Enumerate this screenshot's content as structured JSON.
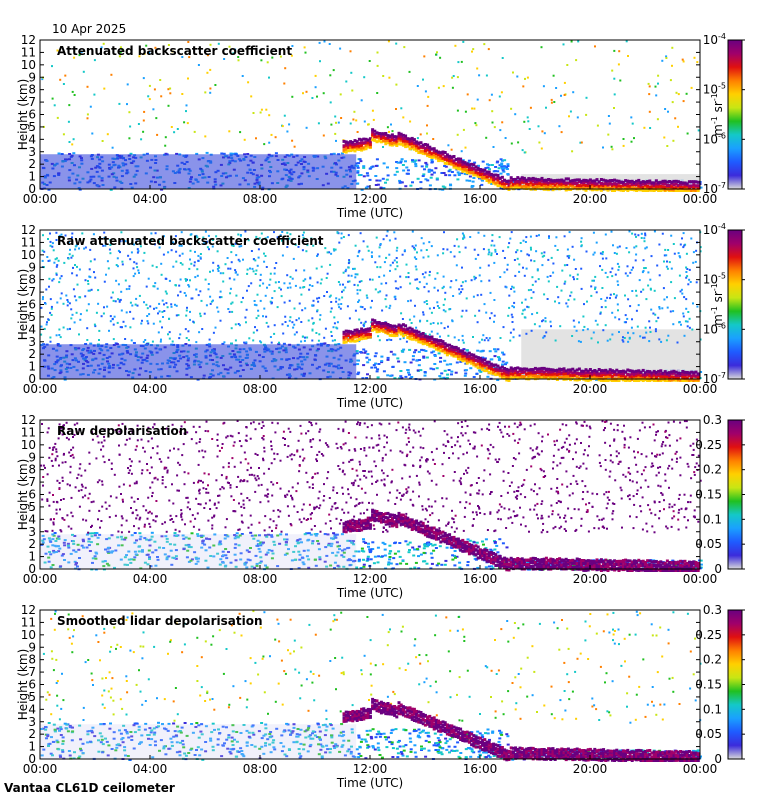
{
  "date_label": "10 Apr 2025",
  "footer_label": "Vantaa CL61D ceilometer",
  "chart_data": [
    {
      "type": "heatmap",
      "title": "Attenuated backscatter coefficient",
      "xlabel": "Time (UTC)",
      "ylabel": "Height (km)",
      "x_ticks": [
        "00:00",
        "04:00",
        "08:00",
        "12:00",
        "16:00",
        "20:00",
        "00:00"
      ],
      "y_ticks": [
        0,
        1,
        2,
        3,
        4,
        5,
        6,
        7,
        8,
        9,
        10,
        11,
        12
      ],
      "ylim": [
        0,
        12
      ],
      "colorbar": {
        "scale": "log",
        "ticks": [
          "10",
          "10",
          "10",
          "10"
        ],
        "exponents": [
          "-4",
          "-5",
          "-6",
          "-7"
        ],
        "unit": "m",
        "unit_exp": "-1",
        "unit2": "sr",
        "unit2_exp": "-1"
      }
    },
    {
      "type": "heatmap",
      "title": "Raw attenuated backscatter coefficient",
      "xlabel": "Time (UTC)",
      "ylabel": "Height (km)",
      "x_ticks": [
        "00:00",
        "04:00",
        "08:00",
        "12:00",
        "16:00",
        "20:00",
        "00:00"
      ],
      "y_ticks": [
        0,
        1,
        2,
        3,
        4,
        5,
        6,
        7,
        8,
        9,
        10,
        11,
        12
      ],
      "ylim": [
        0,
        12
      ],
      "colorbar": {
        "scale": "log",
        "ticks": [
          "10",
          "10",
          "10",
          "10"
        ],
        "exponents": [
          "-4",
          "-5",
          "-6",
          "-7"
        ],
        "unit": "m",
        "unit_exp": "-1",
        "unit2": "sr",
        "unit2_exp": "-1"
      }
    },
    {
      "type": "heatmap",
      "title": "Raw depolarisation",
      "xlabel": "Time (UTC)",
      "ylabel": "Height (km)",
      "x_ticks": [
        "00:00",
        "04:00",
        "08:00",
        "12:00",
        "16:00",
        "20:00",
        "00:00"
      ],
      "y_ticks": [
        0,
        1,
        2,
        3,
        4,
        5,
        6,
        7,
        8,
        9,
        10,
        11,
        12
      ],
      "ylim": [
        0,
        12
      ],
      "colorbar": {
        "scale": "linear",
        "ticks": [
          "0.3",
          "0.25",
          "0.2",
          "0.15",
          "0.1",
          "0.05",
          "0"
        ]
      }
    },
    {
      "type": "heatmap",
      "title": "Smoothed lidar depolarisation",
      "xlabel": "Time (UTC)",
      "ylabel": "Height (km)",
      "x_ticks": [
        "00:00",
        "04:00",
        "08:00",
        "12:00",
        "16:00",
        "20:00",
        "00:00"
      ],
      "y_ticks": [
        0,
        1,
        2,
        3,
        4,
        5,
        6,
        7,
        8,
        9,
        10,
        11,
        12
      ],
      "ylim": [
        0,
        12
      ],
      "colorbar": {
        "scale": "linear",
        "ticks": [
          "0.3",
          "0.25",
          "0.2",
          "0.15",
          "0.1",
          "0.05",
          "0"
        ]
      }
    }
  ],
  "colors": {
    "colormap": [
      "#d9d9d9",
      "#3b2bdb",
      "#1f5bff",
      "#1aa0ff",
      "#14c8c8",
      "#20c020",
      "#c8e614",
      "#ffd000",
      "#ff8000",
      "#e01010",
      "#a0006a",
      "#6a0080"
    ],
    "background": "#ffffff",
    "frame": "#000000"
  }
}
